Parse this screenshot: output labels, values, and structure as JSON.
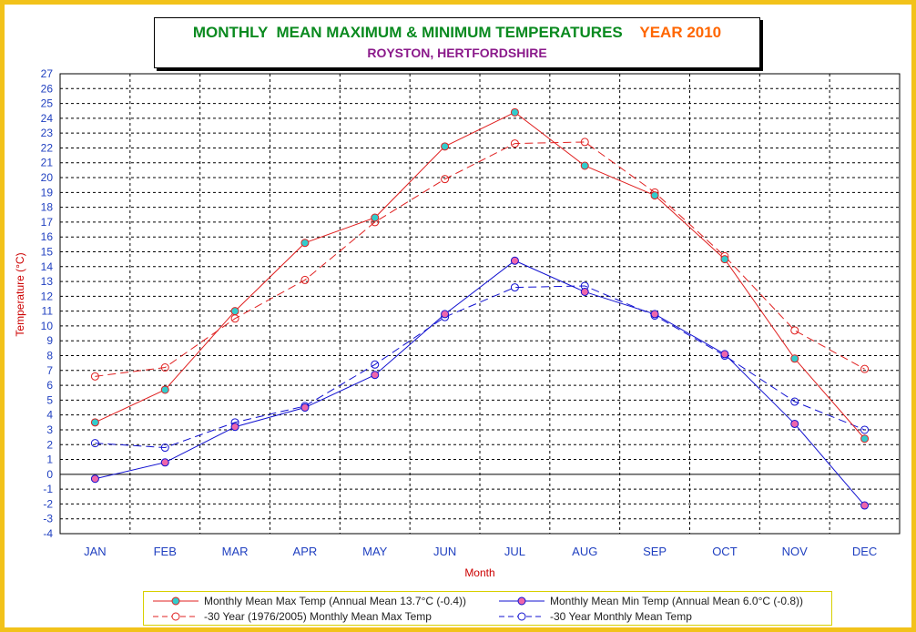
{
  "title": {
    "main": "MONTHLY  MEAN MAXIMUM & MINIMUM TEMPERATURES",
    "year": "YEAR 2010",
    "subtitle": "ROYSTON, HERTFORDSHIRE"
  },
  "colors": {
    "frame": "#f2c21a",
    "max": "#e02020",
    "min": "#1010d0",
    "max_marker": "#33cccc",
    "min_marker": "#ee66aa",
    "title_green": "#0a8a1f",
    "title_orange": "#ff6600",
    "subtitle_purple": "#8b1a8b",
    "axis_label_red": "#cc0000",
    "tick_blue": "#2040c0"
  },
  "chart_data": {
    "type": "line",
    "title": "MONTHLY  MEAN MAXIMUM & MINIMUM TEMPERATURES",
    "subtitle": "ROYSTON, HERTFORDSHIRE",
    "xlabel": "Month",
    "ylabel": "Temperature (°C)",
    "ylim": [
      -4,
      27
    ],
    "yticks": [
      -4,
      -3,
      -2,
      -1,
      0,
      1,
      2,
      3,
      4,
      5,
      6,
      7,
      8,
      9,
      10,
      11,
      12,
      13,
      14,
      15,
      16,
      17,
      18,
      19,
      20,
      21,
      22,
      23,
      24,
      25,
      26,
      27
    ],
    "categories": [
      "JAN",
      "FEB",
      "MAR",
      "APR",
      "MAY",
      "JUN",
      "JUL",
      "AUG",
      "SEP",
      "OCT",
      "NOV",
      "DEC"
    ],
    "grid": true,
    "legend_position": "bottom",
    "series": [
      {
        "name": "Monthly Mean Max Temp (Annual Mean 13.7°C (-0.4))",
        "color": "#e02020",
        "marker_fill": "#33cccc",
        "style": "solid",
        "values": [
          3.5,
          5.7,
          11.0,
          15.6,
          17.3,
          22.1,
          24.4,
          20.8,
          18.8,
          14.5,
          7.8,
          2.4
        ]
      },
      {
        "name": "Monthly Mean Min Temp (Annual Mean 6.0°C (-0.8))",
        "color": "#1010d0",
        "marker_fill": "#ee66aa",
        "style": "solid",
        "values": [
          -0.3,
          0.8,
          3.2,
          4.5,
          6.7,
          10.8,
          14.4,
          12.3,
          10.8,
          8.1,
          3.4,
          -2.1
        ]
      },
      {
        "name": "-30 Year (1976/2005) Monthly Mean Max Temp",
        "color": "#e02020",
        "marker_fill": "none",
        "style": "dashed",
        "values": [
          6.6,
          7.2,
          10.5,
          13.1,
          17.0,
          19.9,
          22.3,
          22.4,
          19.0,
          14.7,
          9.7,
          7.1
        ]
      },
      {
        "name": "-30 Year Monthly Mean Temp",
        "color": "#1010d0",
        "marker_fill": "none",
        "style": "dashed",
        "values": [
          2.1,
          1.8,
          3.5,
          4.6,
          7.4,
          10.6,
          12.6,
          12.7,
          10.7,
          8.0,
          4.9,
          3.0
        ]
      }
    ]
  }
}
